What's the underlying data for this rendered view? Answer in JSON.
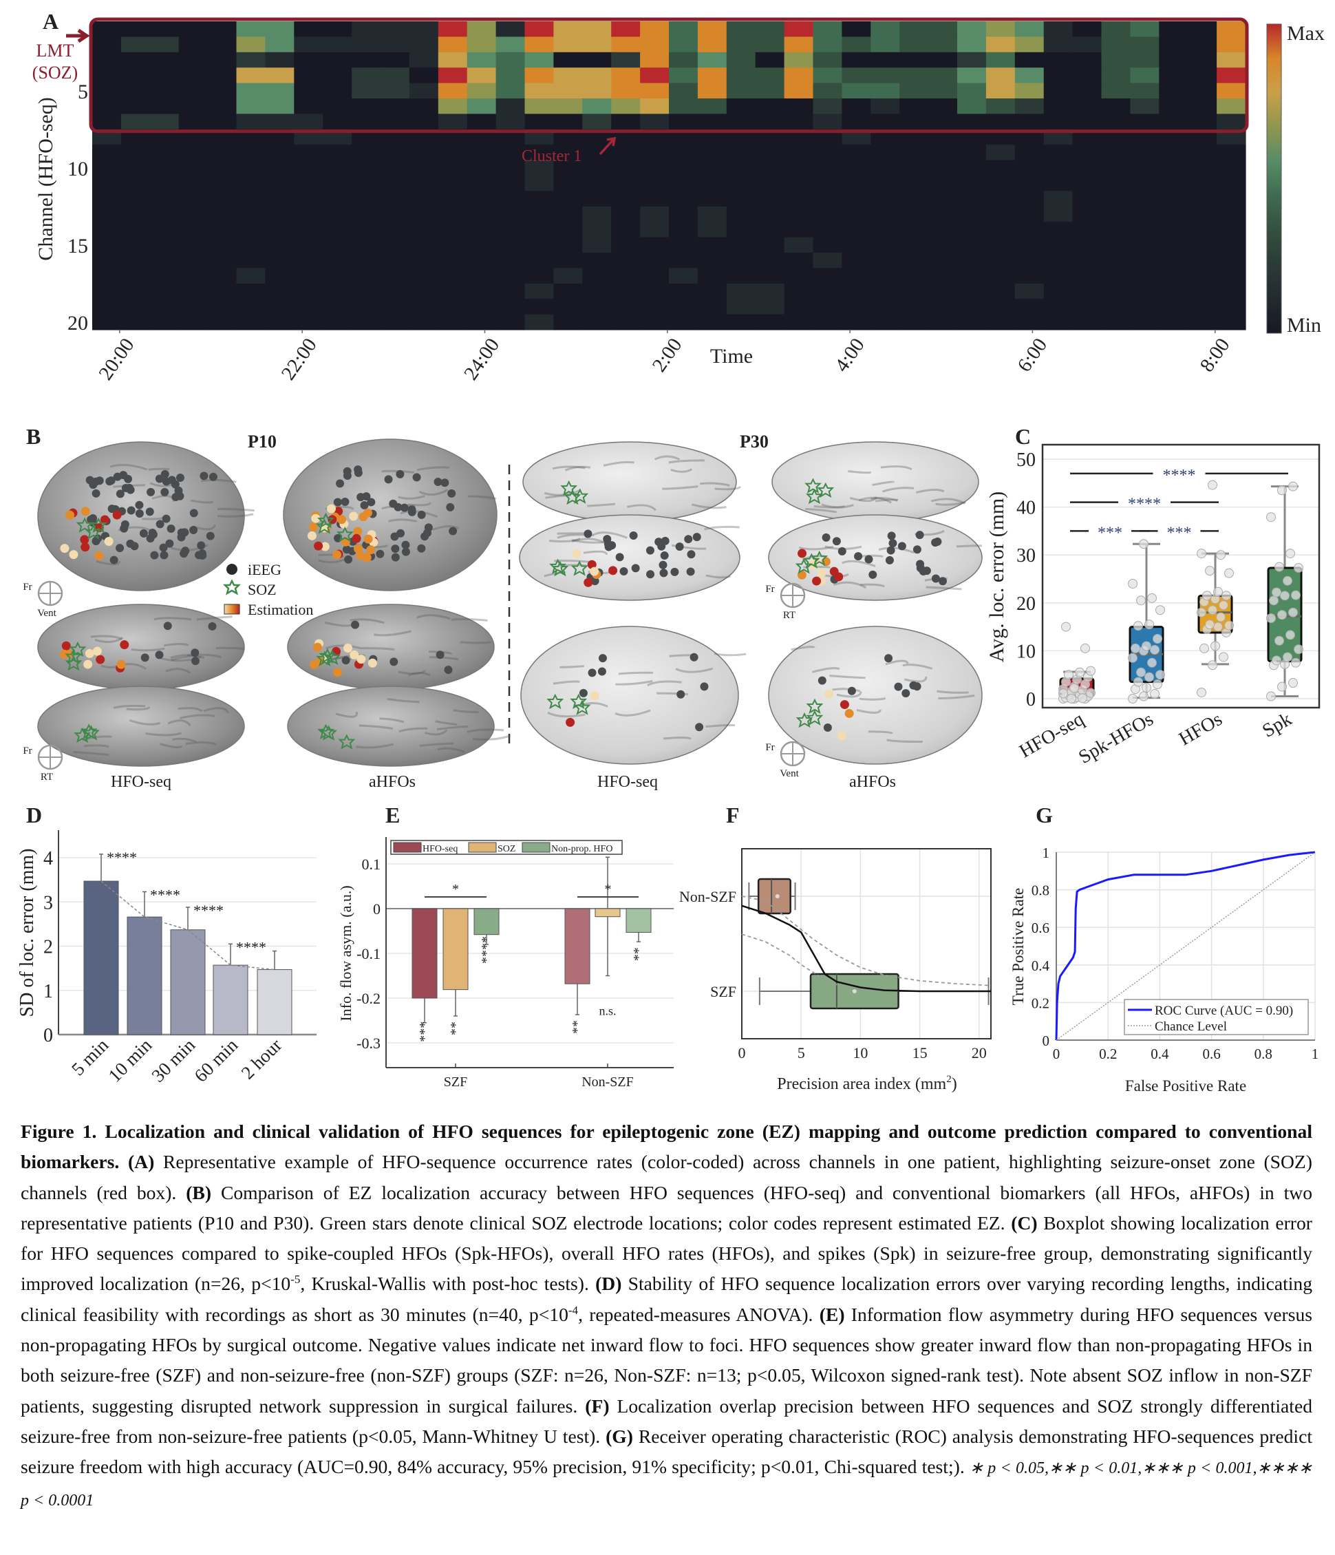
{
  "figure": {
    "panel_letters": [
      "A",
      "B",
      "C",
      "D",
      "E",
      "F",
      "G"
    ],
    "panel_b": {
      "patients": [
        "P10",
        "P30"
      ],
      "legend": {
        "ieeg": "iEEG",
        "soz": "SOZ",
        "estimation": "Estimation"
      },
      "view_labels": [
        "HFO-seq",
        "aHFOs",
        "HFO-seq",
        "aHFOs"
      ],
      "orientations": [
        {
          "side": "Fr",
          "bottom": "Vent"
        },
        {
          "side": "Fr",
          "bottom": "RT"
        },
        {
          "side": "Fr",
          "bottom": "RT"
        },
        {
          "side": "Fr",
          "bottom": "Vent"
        }
      ],
      "colors": {
        "ieeg": "#4a4d4f",
        "soz": "#3f8a4a",
        "estimation_low": "#f3dcb0",
        "estimation_mid": "#e38a2a",
        "estimation_high": "#b7241f"
      }
    }
  },
  "chart_data": [
    {
      "panel": "A",
      "type": "heatmap",
      "xlabel": "Time",
      "ylabel": "Channel (HFO-seq)",
      "time_range": [
        "19:42",
        "08:20"
      ],
      "xticks": [
        "20:00",
        "22:00",
        "24:00",
        "2:00",
        "4:00",
        "6:00",
        "8:00"
      ],
      "yticks": [
        5,
        10,
        15,
        20
      ],
      "value_scale": [
        0,
        9
      ],
      "colorbar": {
        "max": "Max",
        "min": "Min"
      },
      "colormap": [
        "#171824",
        "#222a2f",
        "#2b3a37",
        "#34503f",
        "#3f6b50",
        "#588b68",
        "#8f9650",
        "#c9a04a",
        "#d8862a",
        "#b8282c"
      ],
      "rows": [
        "0000055001119619779848339404335651034008",
        "0220065111118658778848338434335761133008",
        "0000021000017545002835306300002400033007",
        "0000077002209748778948338433335750034009",
        "0000055002218647778838338344334760033008",
        "0000055000006516656733000201004320002006",
        "0220011100001010020100000100000000000001",
        "1000000110000001000000000010000001000001",
        "0000000000000000000000000000000100000000",
        "0000000000000001000000000000000000000000",
        "0000000000000001000000000000000000000000",
        "0000000000000000000000000000000001000000",
        "0000000000000000010101000000000001000000",
        "0000000000000000010101000000000000000000",
        "0000000000000000010000001000000000000000",
        "0000000000000000000000000100000000000000",
        "0000010000000000100010000000000000000000",
        "0000000000000001000000110000000010000000",
        "0000000000000000000000110000000000000000",
        "0000000000000001000000000000000000000000"
      ],
      "highlight": {
        "first_row": 1,
        "last_row": 7,
        "label": "LMT",
        "sublabel": "(SOZ)",
        "color": "#8b1e2c"
      },
      "annotation": "Cluster 1"
    },
    {
      "panel": "C",
      "type": "box",
      "ylabel": "Avg. loc. error (mm)",
      "ylim": [
        -2,
        52
      ],
      "yticks": [
        0,
        10,
        20,
        30,
        40,
        50
      ],
      "categories": [
        "HFO-seq",
        "Spk-HFOs",
        "HFOs",
        "Spk"
      ],
      "colors": [
        "#b5202a",
        "#2b79ad",
        "#e2a121",
        "#4f8a60"
      ],
      "boxes": [
        {
          "q1": 0.5,
          "median": 1.7,
          "q3": 4.2,
          "whisker_low": 0,
          "whisker_high": 5.6
        },
        {
          "q1": 3.5,
          "median": 9.3,
          "q3": 15.0,
          "whisker_low": 0.2,
          "whisker_high": 32.3
        },
        {
          "q1": 13.8,
          "median": 18.0,
          "q3": 21.5,
          "whisker_low": 7.2,
          "whisker_high": 30.3
        },
        {
          "q1": 7.8,
          "median": 17.2,
          "q3": 27.3,
          "whisker_low": 0.5,
          "whisker_high": 44.3
        }
      ],
      "points": [
        [
          0,
          0,
          0,
          0.2,
          0.3,
          0.5,
          0.8,
          1,
          1.2,
          1.5,
          1.8,
          2,
          2.5,
          3,
          3.5,
          4,
          4.5,
          5,
          5.5,
          5.8,
          0,
          0.1,
          1.1,
          2.2,
          10.5,
          15
        ],
        [
          0,
          0.5,
          1,
          2,
          2.3,
          3,
          3.5,
          4.5,
          5,
          5.5,
          7.5,
          8.5,
          10,
          10.2,
          10.5,
          11,
          12.5,
          15.2,
          15.5,
          18.5,
          20.5,
          21,
          24,
          32.3
        ],
        [
          1.3,
          7,
          8.7,
          10.5,
          11,
          13.8,
          14.5,
          15,
          15.3,
          15.5,
          17,
          18,
          18.5,
          19.5,
          20.2,
          20.8,
          21.5,
          21.5,
          22.3,
          26.2,
          26.7,
          30,
          30.3,
          44.6
        ],
        [
          0.5,
          2.5,
          3.3,
          7,
          7.2,
          7.5,
          8,
          8.7,
          10.3,
          12.1,
          13.3,
          16.8,
          17.5,
          18,
          20.5,
          21.5,
          21.6,
          22.2,
          24.6,
          27.3,
          27.5,
          30.3,
          37.9,
          43.5,
          44.3
        ]
      ],
      "significance": [
        {
          "from": 0,
          "to": 3,
          "y": 47,
          "label": "****"
        },
        {
          "from": 0,
          "to": 2,
          "y": 41,
          "label": "****"
        },
        {
          "from": 0,
          "to": 1,
          "y": 35,
          "label": "***"
        },
        {
          "from": 1,
          "to": 2,
          "y": 35,
          "label": "***"
        }
      ]
    },
    {
      "panel": "D",
      "type": "bar",
      "ylabel": "SD of loc. error (mm)",
      "ylim": [
        0,
        4.5
      ],
      "yticks": [
        0,
        1,
        2,
        3,
        4
      ],
      "categories": [
        "5 min",
        "10 min",
        "30 min",
        "60 min",
        "2 hour"
      ],
      "values": [
        3.47,
        2.66,
        2.37,
        1.57,
        1.47
      ],
      "error_upper": [
        4.08,
        3.23,
        2.88,
        2.05,
        1.89
      ],
      "significance": [
        "****",
        "****",
        "****",
        "****",
        ""
      ],
      "colors": [
        "#586481",
        "#777f9a",
        "#9599ae",
        "#b7b9c8",
        "#d7d7df"
      ]
    },
    {
      "panel": "E",
      "type": "bar",
      "ylabel": "Info. flow asym. (a.u.)",
      "ylim": [
        -0.355,
        0.16
      ],
      "yticks": [
        0.1,
        0,
        -0.1,
        -0.2,
        -0.3
      ],
      "ytick_labels": [
        "0.1",
        "0",
        "-0.1",
        "-0.2",
        "-0.3"
      ],
      "categories": [
        "SZF",
        "Non-SZF"
      ],
      "series": [
        {
          "name": "HFO-seq",
          "values": [
            -0.2,
            -0.168
          ],
          "error_low": [
            -0.255,
            -0.237
          ],
          "error_high": [
            -0.2,
            -0.168
          ],
          "colors": [
            "#9b4a55",
            "#b06e77"
          ]
        },
        {
          "name": "SOZ",
          "values": [
            -0.181,
            -0.018
          ],
          "error_low": [
            -0.24,
            -0.15
          ],
          "error_high": [
            -0.181,
            0.115
          ],
          "colors": [
            "#dfb474",
            "#e8c78f"
          ]
        },
        {
          "name": "Non-prop. HFO",
          "values": [
            -0.058,
            -0.053
          ],
          "error_low": [
            -0.08,
            -0.074
          ],
          "error_high": [
            -0.058,
            -0.053
          ],
          "colors": [
            "#88ab88",
            "#a3c2a1"
          ]
        }
      ],
      "bar_annotations": [
        [
          "***",
          "**",
          "****"
        ],
        [
          "**",
          "n.s.",
          "**"
        ]
      ],
      "group_significance": [
        "*",
        "*"
      ]
    },
    {
      "panel": "F",
      "type": "box",
      "xlabel": "Precision area index (mm",
      "xlabel_sup": "2",
      "xlabel_end": ")",
      "xlim": [
        0,
        21
      ],
      "xticks": [
        0,
        5,
        10,
        15,
        20
      ],
      "categories": [
        "Non-SZF",
        "SZF"
      ],
      "colors": [
        "#b98d75",
        "#86a983"
      ],
      "boxes": [
        {
          "q1": 1.4,
          "median": 2.5,
          "q3": 4.1,
          "whisker_low": 0.6,
          "whisker_high": 4.5,
          "mean": 3.0
        },
        {
          "q1": 5.8,
          "median": 8.0,
          "q3": 13.2,
          "whisker_low": 1.5,
          "whisker_high": 20.8,
          "mean": 9.5
        }
      ],
      "fit_curve": {
        "x": [
          0,
          2,
          4,
          5,
          6,
          7,
          8,
          10,
          12,
          15,
          21
        ],
        "y": [
          0.9,
          0.82,
          0.7,
          0.62,
          0.4,
          0.18,
          0.1,
          0.04,
          0.01,
          0,
          0
        ]
      },
      "fit_upper": {
        "x": [
          0,
          2,
          4,
          6,
          8,
          10,
          12,
          15,
          18,
          21
        ],
        "y": [
          1.0,
          0.95,
          0.75,
          0.55,
          0.38,
          0.25,
          0.17,
          0.11,
          0.08,
          0.06
        ]
      },
      "fit_lower": {
        "x": [
          0,
          2,
          4,
          5,
          6,
          7.5,
          9,
          12,
          21
        ],
        "y": [
          0.6,
          0.52,
          0.38,
          0.28,
          0.2,
          0.09,
          0.03,
          0,
          0
        ]
      }
    },
    {
      "panel": "G",
      "type": "line",
      "xlabel": "False Positive Rate",
      "ylabel": "True Positive Rate",
      "xlim": [
        0,
        1
      ],
      "ylim": [
        0,
        1
      ],
      "xticks": [
        "0",
        "0.2",
        "0.4",
        "0.6",
        "0.8",
        "1"
      ],
      "yticks": [
        "0",
        "0.2",
        "0.4",
        "0.6",
        "0.8",
        "1"
      ],
      "series": [
        {
          "name": "ROC Curve (AUC = 0.90)",
          "color": "#1a1aff",
          "x": [
            0,
            0.003,
            0.008,
            0.015,
            0.03,
            0.05,
            0.065,
            0.072,
            0.075,
            0.08,
            0.09,
            0.15,
            0.2,
            0.3,
            0.5,
            0.6,
            0.7,
            0.8,
            0.9,
            1
          ],
          "y": [
            0,
            0.2,
            0.3,
            0.34,
            0.37,
            0.41,
            0.44,
            0.47,
            0.7,
            0.79,
            0.8,
            0.83,
            0.855,
            0.88,
            0.88,
            0.9,
            0.93,
            0.96,
            0.985,
            1
          ]
        },
        {
          "name": "Chance Level",
          "color": "#888888",
          "x": [
            0,
            1
          ],
          "y": [
            0,
            1
          ]
        }
      ],
      "legend_position": "bottom-right"
    }
  ],
  "caption": [
    {
      "style": "b",
      "text": "Figure 1. Localization and clinical validation of HFO sequences for epileptogenic zone (EZ) mapping and outcome prediction compared to conventional biomarkers."
    },
    {
      "style": "n",
      "text": " "
    },
    {
      "style": "b",
      "text": "(A)"
    },
    {
      "style": "n",
      "text": " Representative example of HFO-sequence occurrence rates (color-coded) across channels in one patient, highlighting seizure-onset zone (SOZ) channels (red box). "
    },
    {
      "style": "b",
      "text": "(B)"
    },
    {
      "style": "n",
      "text": " Comparison of EZ localization accuracy between HFO sequences (HFO-seq) and conventional biomarkers (all HFOs, aHFOs) in two representative patients (P10 and P30). Green stars denote clinical SOZ electrode locations; color codes represent estimated EZ. "
    },
    {
      "style": "b",
      "text": "(C)"
    },
    {
      "style": "n",
      "text": " Boxplot showing localization error for HFO sequences compared to spike-coupled HFOs (Spk-HFOs), overall HFO rates (HFOs), and spikes (Spk) in seizure-free group, demonstrating significantly improved localization (n=26, p<10"
    },
    {
      "style": "sup",
      "text": "-5"
    },
    {
      "style": "n",
      "text": ", Kruskal-Wallis with post-hoc tests). "
    },
    {
      "style": "b",
      "text": "(D)"
    },
    {
      "style": "n",
      "text": " Stability of HFO sequence localization errors over varying recording lengths, indicating clinical feasibility with recordings as short as 30 minutes (n=40, p<10"
    },
    {
      "style": "sup",
      "text": "-4"
    },
    {
      "style": "n",
      "text": ", repeated-measures ANOVA). "
    },
    {
      "style": "b",
      "text": "(E)"
    },
    {
      "style": "n",
      "text": " Information flow asymmetry during HFO sequences versus non-propagating HFOs by surgical outcome. Negative values indicate net inward flow to foci. HFO sequences show greater inward flow than non-propagating HFOs in both seizure-free (SZF) and non-seizure-free (non-SZF) groups (SZF: n=26, Non-SZF: n=13; p<0.05, Wilcoxon signed-rank test). Note absent SOZ inflow in non-SZF patients, suggesting disrupted network suppression in surgical failures. "
    },
    {
      "style": "b",
      "text": "(F)"
    },
    {
      "style": "n",
      "text": " Localization overlap precision between HFO sequences and SOZ strongly differentiated seizure-free from non-seizure-free patients (p<0.05, Mann-Whitney U test). "
    },
    {
      "style": "b",
      "text": "(G)"
    },
    {
      "style": "n",
      "text": " Receiver operating characteristic (ROC) analysis demonstrating HFO-sequences predict seizure freedom with high accuracy (AUC=0.90, 84% accuracy, 95% precision, 91% specificity; p<0.01, Chi-squared test;).  "
    },
    {
      "style": "sig",
      "text": "∗ p < 0.05,∗∗ p < 0.01,∗∗∗ p < 0.001,∗∗∗∗ p < 0.0001"
    }
  ]
}
